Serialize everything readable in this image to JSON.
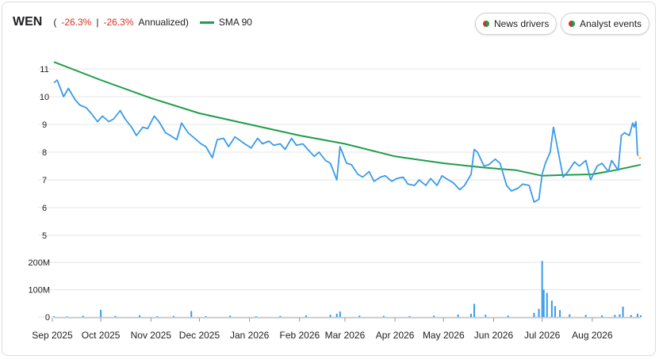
{
  "header": {
    "ticker": "WEN",
    "open_paren": "(",
    "change": "-26.3%",
    "separator": "|",
    "change_annualized": "-26.3%",
    "annualized_label": "Annualized)",
    "sma_label": "SMA 90"
  },
  "buttons": {
    "news": "News drivers",
    "analyst": "Analyst events"
  },
  "colors": {
    "price": "#3a9be8",
    "sma": "#1e9e4a",
    "volume": "#3a9be8",
    "last_segment": "#f0a020",
    "grid": "#e6e6e6",
    "negative": "#d93025"
  },
  "chart_data": {
    "type": "line",
    "x_range": [
      "2025-09-02",
      "2026-08-31"
    ],
    "ylim": [
      5,
      11
    ],
    "y_ticks": [
      "5",
      "6",
      "7",
      "8",
      "9",
      "10",
      "11"
    ],
    "volume_ylim": [
      0,
      200000000
    ],
    "volume_ticks": [
      "0",
      "100M",
      "200M"
    ],
    "x_tick_labels": [
      "Sep 2025",
      "Oct 2025",
      "Nov 2025",
      "Dec 2025",
      "Jan 2026",
      "Feb 2026",
      "Mar 2026",
      "Apr 2026",
      "May 2026",
      "Jun 2026",
      "Jul 2026",
      "Aug 2026"
    ],
    "x_tick_dates": [
      "2025-09-01",
      "2025-10-01",
      "2025-11-01",
      "2025-12-01",
      "2026-01-01",
      "2026-02-01",
      "2026-03-01",
      "2026-04-01",
      "2026-05-01",
      "2026-06-01",
      "2026-07-01",
      "2026-08-01"
    ],
    "series": [
      {
        "name": "WEN",
        "points": [
          [
            "2025-09-02",
            10.5
          ],
          [
            "2025-09-04",
            10.6
          ],
          [
            "2025-09-08",
            10.0
          ],
          [
            "2025-09-11",
            10.3
          ],
          [
            "2025-09-15",
            9.9
          ],
          [
            "2025-09-18",
            9.7
          ],
          [
            "2025-09-22",
            9.6
          ],
          [
            "2025-09-25",
            9.4
          ],
          [
            "2025-09-29",
            9.1
          ],
          [
            "2025-10-02",
            9.3
          ],
          [
            "2025-10-06",
            9.1
          ],
          [
            "2025-10-09",
            9.2
          ],
          [
            "2025-10-13",
            9.5
          ],
          [
            "2025-10-16",
            9.2
          ],
          [
            "2025-10-20",
            8.9
          ],
          [
            "2025-10-23",
            8.6
          ],
          [
            "2025-10-27",
            8.9
          ],
          [
            "2025-10-30",
            8.85
          ],
          [
            "2025-11-03",
            9.3
          ],
          [
            "2025-11-06",
            9.1
          ],
          [
            "2025-11-10",
            8.7
          ],
          [
            "2025-11-13",
            8.6
          ],
          [
            "2025-11-17",
            8.45
          ],
          [
            "2025-11-20",
            9.05
          ],
          [
            "2025-11-24",
            8.7
          ],
          [
            "2025-11-28",
            8.5
          ],
          [
            "2025-12-02",
            8.3
          ],
          [
            "2025-12-05",
            8.2
          ],
          [
            "2025-12-09",
            7.8
          ],
          [
            "2025-12-12",
            8.45
          ],
          [
            "2025-12-16",
            8.5
          ],
          [
            "2025-12-19",
            8.2
          ],
          [
            "2025-12-23",
            8.55
          ],
          [
            "2025-12-29",
            8.3
          ],
          [
            "2026-01-02",
            8.15
          ],
          [
            "2026-01-06",
            8.5
          ],
          [
            "2026-01-09",
            8.3
          ],
          [
            "2026-01-13",
            8.4
          ],
          [
            "2026-01-16",
            8.25
          ],
          [
            "2026-01-20",
            8.3
          ],
          [
            "2026-01-23",
            8.1
          ],
          [
            "2026-01-27",
            8.5
          ],
          [
            "2026-01-30",
            8.25
          ],
          [
            "2026-02-03",
            8.3
          ],
          [
            "2026-02-06",
            8.1
          ],
          [
            "2026-02-10",
            7.85
          ],
          [
            "2026-02-13",
            8.0
          ],
          [
            "2026-02-17",
            7.7
          ],
          [
            "2026-02-20",
            7.6
          ],
          [
            "2026-02-24",
            7.0
          ],
          [
            "2026-02-26",
            8.2
          ],
          [
            "2026-03-02",
            7.6
          ],
          [
            "2026-03-05",
            7.55
          ],
          [
            "2026-03-09",
            7.2
          ],
          [
            "2026-03-12",
            7.1
          ],
          [
            "2026-03-16",
            7.3
          ],
          [
            "2026-03-19",
            6.95
          ],
          [
            "2026-03-23",
            7.1
          ],
          [
            "2026-03-26",
            7.15
          ],
          [
            "2026-03-30",
            6.95
          ],
          [
            "2026-04-02",
            7.05
          ],
          [
            "2026-04-06",
            7.1
          ],
          [
            "2026-04-09",
            6.85
          ],
          [
            "2026-04-13",
            6.8
          ],
          [
            "2026-04-16",
            7.0
          ],
          [
            "2026-04-20",
            6.8
          ],
          [
            "2026-04-23",
            7.05
          ],
          [
            "2026-04-27",
            6.8
          ],
          [
            "2026-04-30",
            7.15
          ],
          [
            "2026-05-04",
            7.0
          ],
          [
            "2026-05-07",
            6.9
          ],
          [
            "2026-05-11",
            6.65
          ],
          [
            "2026-05-14",
            6.8
          ],
          [
            "2026-05-18",
            7.2
          ],
          [
            "2026-05-20",
            8.1
          ],
          [
            "2026-05-22",
            8.0
          ],
          [
            "2026-05-26",
            7.5
          ],
          [
            "2026-05-29",
            7.55
          ],
          [
            "2026-06-02",
            7.75
          ],
          [
            "2026-06-05",
            7.6
          ],
          [
            "2026-06-09",
            6.8
          ],
          [
            "2026-06-12",
            6.6
          ],
          [
            "2026-06-16",
            6.7
          ],
          [
            "2026-06-19",
            6.85
          ],
          [
            "2026-06-23",
            6.8
          ],
          [
            "2026-06-26",
            6.2
          ],
          [
            "2026-06-29",
            6.3
          ],
          [
            "2026-07-01",
            7.2
          ],
          [
            "2026-07-03",
            7.6
          ],
          [
            "2026-07-06",
            8.0
          ],
          [
            "2026-07-08",
            8.9
          ],
          [
            "2026-07-10",
            8.3
          ],
          [
            "2026-07-14",
            7.1
          ],
          [
            "2026-07-17",
            7.3
          ],
          [
            "2026-07-21",
            7.65
          ],
          [
            "2026-07-24",
            7.5
          ],
          [
            "2026-07-28",
            7.7
          ],
          [
            "2026-07-31",
            7.0
          ],
          [
            "2026-08-04",
            7.5
          ],
          [
            "2026-08-07",
            7.6
          ],
          [
            "2026-08-11",
            7.3
          ],
          [
            "2026-08-13",
            7.7
          ],
          [
            "2026-08-17",
            7.35
          ],
          [
            "2026-08-19",
            8.6
          ],
          [
            "2026-08-21",
            8.7
          ],
          [
            "2026-08-24",
            8.6
          ],
          [
            "2026-08-26",
            9.05
          ],
          [
            "2026-08-27",
            8.9
          ],
          [
            "2026-08-28",
            9.1
          ],
          [
            "2026-08-29",
            7.9
          ],
          [
            "2026-08-31",
            7.75
          ]
        ]
      },
      {
        "name": "SMA 90",
        "points": [
          [
            "2025-09-02",
            11.25
          ],
          [
            "2025-10-01",
            10.6
          ],
          [
            "2025-11-01",
            9.95
          ],
          [
            "2025-12-01",
            9.4
          ],
          [
            "2026-01-01",
            9.0
          ],
          [
            "2026-02-01",
            8.6
          ],
          [
            "2026-03-01",
            8.3
          ],
          [
            "2026-04-01",
            7.85
          ],
          [
            "2026-05-01",
            7.6
          ],
          [
            "2026-05-25",
            7.45
          ],
          [
            "2026-06-15",
            7.35
          ],
          [
            "2026-07-01",
            7.15
          ],
          [
            "2026-07-15",
            7.18
          ],
          [
            "2026-08-01",
            7.2
          ],
          [
            "2026-08-15",
            7.35
          ],
          [
            "2026-08-31",
            7.55
          ]
        ]
      }
    ],
    "volume": [
      [
        "2025-09-02",
        3000000
      ],
      [
        "2025-09-10",
        2000000
      ],
      [
        "2025-09-20",
        5000000
      ],
      [
        "2025-10-01",
        26000000
      ],
      [
        "2025-10-10",
        4000000
      ],
      [
        "2025-10-25",
        6000000
      ],
      [
        "2025-11-05",
        3000000
      ],
      [
        "2025-11-15",
        4000000
      ],
      [
        "2025-11-26",
        22000000
      ],
      [
        "2025-12-05",
        3000000
      ],
      [
        "2025-12-20",
        5000000
      ],
      [
        "2026-01-05",
        3000000
      ],
      [
        "2026-01-20",
        4000000
      ],
      [
        "2026-02-05",
        6000000
      ],
      [
        "2026-02-20",
        8000000
      ],
      [
        "2026-02-24",
        12000000
      ],
      [
        "2026-02-26",
        20000000
      ],
      [
        "2026-03-10",
        5000000
      ],
      [
        "2026-03-25",
        4000000
      ],
      [
        "2026-04-10",
        3000000
      ],
      [
        "2026-04-25",
        5000000
      ],
      [
        "2026-05-10",
        9000000
      ],
      [
        "2026-05-18",
        12000000
      ],
      [
        "2026-05-20",
        48000000
      ],
      [
        "2026-05-27",
        8000000
      ],
      [
        "2026-06-10",
        5000000
      ],
      [
        "2026-06-26",
        15000000
      ],
      [
        "2026-06-29",
        30000000
      ],
      [
        "2026-07-01",
        205000000
      ],
      [
        "2026-07-02",
        100000000
      ],
      [
        "2026-07-04",
        88000000
      ],
      [
        "2026-07-07",
        60000000
      ],
      [
        "2026-07-09",
        40000000
      ],
      [
        "2026-07-12",
        25000000
      ],
      [
        "2026-07-18",
        10000000
      ],
      [
        "2026-07-28",
        8000000
      ],
      [
        "2026-08-07",
        6000000
      ],
      [
        "2026-08-15",
        8000000
      ],
      [
        "2026-08-18",
        10000000
      ],
      [
        "2026-08-20",
        38000000
      ],
      [
        "2026-08-25",
        7000000
      ],
      [
        "2026-08-29",
        12000000
      ],
      [
        "2026-08-31",
        6000000
      ]
    ]
  }
}
